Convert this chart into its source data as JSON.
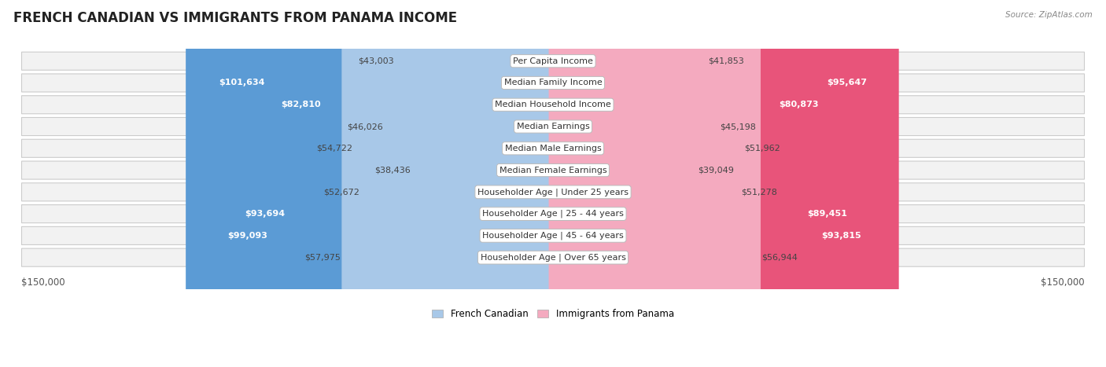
{
  "title": "FRENCH CANADIAN VS IMMIGRANTS FROM PANAMA INCOME",
  "source": "Source: ZipAtlas.com",
  "categories": [
    "Per Capita Income",
    "Median Family Income",
    "Median Household Income",
    "Median Earnings",
    "Median Male Earnings",
    "Median Female Earnings",
    "Householder Age | Under 25 years",
    "Householder Age | 25 - 44 years",
    "Householder Age | 45 - 64 years",
    "Householder Age | Over 65 years"
  ],
  "french_canadian": [
    43003,
    101634,
    82810,
    46026,
    54722,
    38436,
    52672,
    93694,
    99093,
    57975
  ],
  "immigrants_panama": [
    41853,
    95647,
    80873,
    45198,
    51962,
    39049,
    51278,
    89451,
    93815,
    56944
  ],
  "max_value": 150000,
  "color_blue_light": "#A8C8E8",
  "color_blue_dark": "#5B9BD5",
  "color_pink_light": "#F4AABF",
  "color_pink_dark": "#E8547A",
  "label_blue": "French Canadian",
  "label_pink": "Immigrants from Panama",
  "inside_threshold": 65000,
  "title_fontsize": 12,
  "cat_fontsize": 8,
  "value_fontsize": 8,
  "axis_label_fontsize": 8.5
}
